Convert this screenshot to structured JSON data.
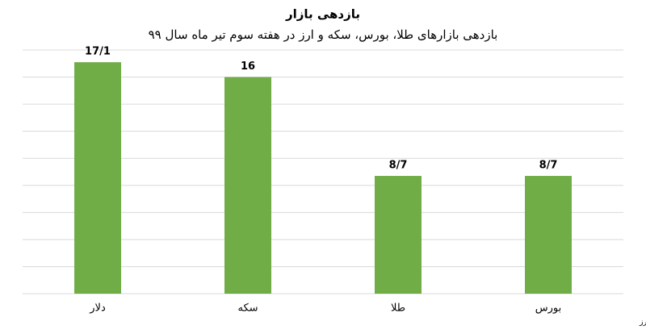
{
  "chart_data": {
    "type": "bar",
    "title": "بازدهی بازار",
    "subtitle": "بازدهی بازارهای طلا، بورس، سکه و ارز در هفته سوم تیر ماه سال ۹۹",
    "source": "منبع: دلار: صرافی ملی، بورس: سازمان بورس و اوراق بهادار، طلا و سکه: شبکه اطلاع‌رسانی طلا، سکه و ارز",
    "categories": [
      "دلار",
      "سکه",
      "طلا",
      "بورس"
    ],
    "values": [
      17.1,
      16,
      8.7,
      8.7
    ],
    "value_labels": [
      "17/1",
      "16",
      "8/7",
      "8/7"
    ],
    "color": "#70ad47",
    "ylim": [
      0,
      18
    ],
    "yticks": [
      0,
      2,
      4,
      6,
      8,
      10,
      12,
      14,
      16,
      18
    ],
    "grid": true
  }
}
